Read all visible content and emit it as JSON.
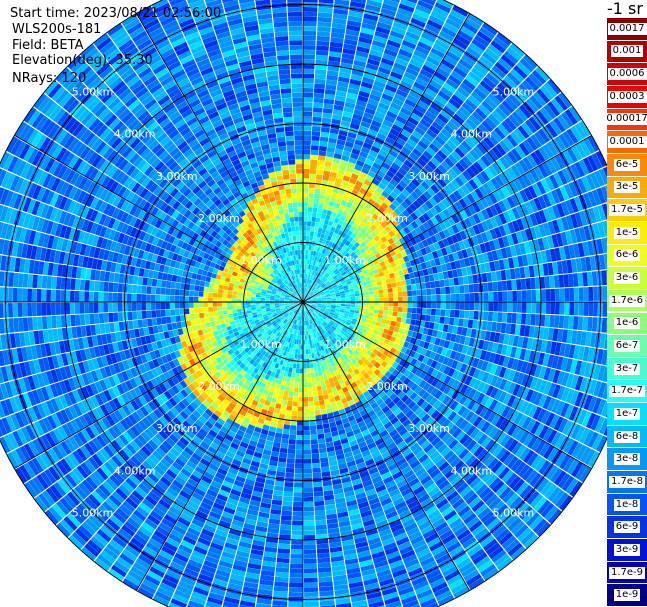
{
  "header": {
    "start_time": "Start time: 2023/08/21 02:56:00",
    "device": "WLS200s-181",
    "field": "Field: BETA",
    "elevation": "Elevation(deg): 35.30",
    "nrays": "NRays: 120"
  },
  "colorbar": {
    "unit_label": "-1 sr",
    "labels": [
      "0.0017",
      "0.001",
      "0.0006",
      "0.0003",
      "0.00017",
      "0.0001",
      "6e-5",
      "3e-5",
      "1.7e-5",
      "1e-5",
      "6e-6",
      "3e-6",
      "1.7e-6",
      "1e-6",
      "6e-7",
      "3e-7",
      "1.7e-7",
      "1e-7",
      "6e-8",
      "3e-8",
      "1.7e-8",
      "1e-8",
      "6e-9",
      "3e-9",
      "1.7e-9",
      "1e-9"
    ],
    "colors": [
      "#8b0000",
      "#b00000",
      "#d40000",
      "#f00000",
      "#ff3300",
      "#ff6600",
      "#ff8800",
      "#ffaa00",
      "#ffcc00",
      "#ffee00",
      "#f0ff10",
      "#ccff33",
      "#a8ff55",
      "#88ff77",
      "#66ffaa",
      "#44ffcc",
      "#22ffee",
      "#00e0ff",
      "#00bbff",
      "#0099ff",
      "#0077ff",
      "#0055ff",
      "#0033ee",
      "#0011dd",
      "#0000bb",
      "#00008b"
    ]
  },
  "chart_data": {
    "type": "heatmap",
    "projection": "polar (PPI scan)",
    "field": "BETA",
    "elevation_deg": 35.3,
    "n_rays": 120,
    "range_rings_km": [
      1.0,
      2.0,
      3.0,
      4.0,
      5.0
    ],
    "range_ring_labels": [
      "1.00km",
      "2.00km",
      "3.00km",
      "4.00km",
      "5.00km"
    ],
    "max_range_km": 5.6,
    "value_scale": "log",
    "value_min": 1e-09,
    "value_max": 0.0017,
    "pattern": [
      {
        "range_km": [
          0.0,
          1.0
        ],
        "typical_value": "6e-8 to 3e-7"
      },
      {
        "range_km": [
          1.0,
          2.2
        ],
        "typical_value": "1e-6 to 3e-5 (enhanced ring, peaks ~1e-4)"
      },
      {
        "range_km": [
          2.2,
          5.6
        ],
        "typical_value": "1e-8 to 1e-7"
      }
    ]
  }
}
